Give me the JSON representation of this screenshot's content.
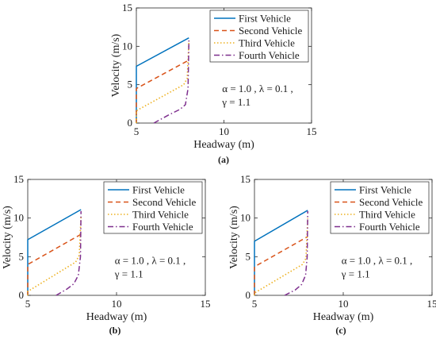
{
  "chart_data": [
    {
      "type": "line",
      "panel_label": "(a)",
      "xlabel": "Headway (m)",
      "ylabel": "Velocity (m/s)",
      "xlim": [
        5,
        15
      ],
      "ylim": [
        0,
        15
      ],
      "xticks": [
        "5",
        "10",
        "15"
      ],
      "yticks": [
        "0",
        "5",
        "10",
        "15"
      ],
      "legend_position": "top-right",
      "annotation_line1": "α = 1.0 , λ = 0.1 ,",
      "annotation_line2": "γ = 1.1",
      "series": [
        {
          "name": "First Vehicle",
          "color": "#0072BD",
          "dash": "solid",
          "points": [
            [
              5.0,
              0.0
            ],
            [
              5.0,
              7.4
            ],
            [
              8.0,
              11.1
            ]
          ]
        },
        {
          "name": "Second Vehicle",
          "color": "#D95319",
          "dash": "dashed",
          "points": [
            [
              5.0,
              0.0
            ],
            [
              5.0,
              4.5
            ],
            [
              8.0,
              8.2
            ]
          ]
        },
        {
          "name": "Third Vehicle",
          "color": "#EDB120",
          "dash": "dotted",
          "points": [
            [
              5.0,
              0.0
            ],
            [
              5.0,
              1.6
            ],
            [
              7.7,
              5.0
            ],
            [
              7.9,
              5.8
            ],
            [
              8.0,
              10.5
            ]
          ]
        },
        {
          "name": "Fourth Vehicle",
          "color": "#7E2F8E",
          "dash": "dashdot",
          "points": [
            [
              6.0,
              0.0
            ],
            [
              6.8,
              1.0
            ],
            [
              7.5,
              1.8
            ],
            [
              7.8,
              2.4
            ],
            [
              7.95,
              4.5
            ],
            [
              8.0,
              10.8
            ]
          ]
        }
      ]
    },
    {
      "type": "line",
      "panel_label": "(b)",
      "xlabel": "Headway (m)",
      "ylabel": "Velocity (m/s)",
      "xlim": [
        5,
        15
      ],
      "ylim": [
        0,
        15
      ],
      "xticks": [
        "5",
        "10",
        "15"
      ],
      "yticks": [
        "0",
        "5",
        "10",
        "15"
      ],
      "legend_position": "top-right",
      "annotation_line1": "α = 1.0 , λ = 0.1 ,",
      "annotation_line2": "γ = 1.1",
      "series": [
        {
          "name": "First Vehicle",
          "color": "#0072BD",
          "dash": "solid",
          "points": [
            [
              5.0,
              0.0
            ],
            [
              5.0,
              7.2
            ],
            [
              8.0,
              11.1
            ]
          ]
        },
        {
          "name": "Second Vehicle",
          "color": "#D95319",
          "dash": "dashed",
          "points": [
            [
              5.0,
              0.0
            ],
            [
              5.0,
              4.0
            ],
            [
              8.0,
              7.9
            ]
          ]
        },
        {
          "name": "Third Vehicle",
          "color": "#EDB120",
          "dash": "dotted",
          "points": [
            [
              5.0,
              0.0
            ],
            [
              5.0,
              0.5
            ],
            [
              7.7,
              4.3
            ],
            [
              7.9,
              5.2
            ],
            [
              8.0,
              10.2
            ]
          ]
        },
        {
          "name": "Fourth Vehicle",
          "color": "#7E2F8E",
          "dash": "dashdot",
          "points": [
            [
              6.6,
              0.0
            ],
            [
              7.2,
              0.8
            ],
            [
              7.6,
              1.5
            ],
            [
              7.85,
              2.6
            ],
            [
              7.97,
              5.0
            ],
            [
              8.0,
              10.9
            ]
          ]
        }
      ]
    },
    {
      "type": "line",
      "panel_label": "(c)",
      "xlabel": "Headway (m)",
      "ylabel": "Velocity (m/s)",
      "xlim": [
        5,
        15
      ],
      "ylim": [
        0,
        15
      ],
      "xticks": [
        "5",
        "10",
        "15"
      ],
      "yticks": [
        "0",
        "5",
        "10",
        "15"
      ],
      "legend_position": "top-right",
      "annotation_line1": "α = 1.0 , λ = 0.1 ,",
      "annotation_line2": "γ = 1.1",
      "series": [
        {
          "name": "First Vehicle",
          "color": "#0072BD",
          "dash": "solid",
          "points": [
            [
              5.0,
              0.0
            ],
            [
              5.0,
              7.0
            ],
            [
              8.0,
              11.0
            ]
          ]
        },
        {
          "name": "Second Vehicle",
          "color": "#D95319",
          "dash": "dashed",
          "points": [
            [
              5.0,
              0.0
            ],
            [
              5.0,
              3.7
            ],
            [
              8.0,
              7.6
            ]
          ]
        },
        {
          "name": "Third Vehicle",
          "color": "#EDB120",
          "dash": "dotted",
          "points": [
            [
              5.0,
              0.0
            ],
            [
              5.0,
              0.3
            ],
            [
              7.7,
              4.0
            ],
            [
              7.9,
              4.8
            ],
            [
              8.0,
              10.0
            ]
          ]
        },
        {
          "name": "Fourth Vehicle",
          "color": "#7E2F8E",
          "dash": "dashdot",
          "points": [
            [
              6.7,
              0.0
            ],
            [
              7.3,
              0.7
            ],
            [
              7.65,
              1.4
            ],
            [
              7.88,
              2.6
            ],
            [
              7.97,
              5.0
            ],
            [
              8.0,
              10.9
            ]
          ]
        }
      ]
    }
  ]
}
